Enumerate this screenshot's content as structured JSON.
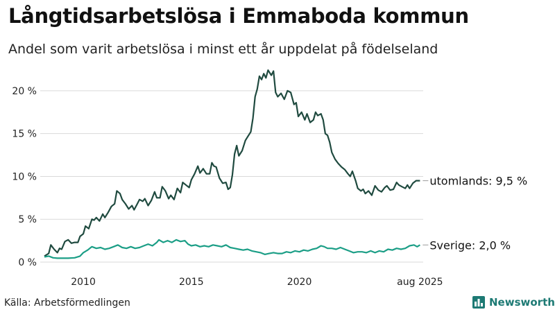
{
  "title": "Långtidsarbetslösa i Emmaboda kommun",
  "subtitle": "Andel som varit arbetslösa i minst ett år uppdelat på födelseland",
  "source": "Källa: Arbetsförmedlingen",
  "brand": {
    "name": "Newsworthy",
    "icon": "bar-chart-logo-icon",
    "color": "#1d7a74"
  },
  "chart_data": {
    "type": "line",
    "ylim": [
      0,
      22.5
    ],
    "yticks": [
      0,
      5,
      10,
      15,
      20
    ],
    "ytick_labels": [
      "0 %",
      "5 %",
      "10 %",
      "15 %",
      "20 %"
    ],
    "xlim": [
      2008.2,
      2025.6
    ],
    "xticks": [
      2010,
      2015,
      2020,
      2025.58
    ],
    "xtick_labels": [
      "2010",
      "2015",
      "2020",
      "aug 2025"
    ],
    "grid": true,
    "series": [
      {
        "name": "utomlands",
        "color": "#1f4a3f",
        "end_label": "utomlands: 9,5 %",
        "points": [
          [
            2008.2,
            0.7
          ],
          [
            2008.4,
            1.0
          ],
          [
            2008.5,
            2.0
          ],
          [
            2008.65,
            1.5
          ],
          [
            2008.8,
            1.1
          ],
          [
            2008.9,
            1.6
          ],
          [
            2009.0,
            1.5
          ],
          [
            2009.15,
            2.4
          ],
          [
            2009.3,
            2.6
          ],
          [
            2009.45,
            2.2
          ],
          [
            2009.6,
            2.3
          ],
          [
            2009.75,
            2.3
          ],
          [
            2009.85,
            3.0
          ],
          [
            2010.0,
            3.3
          ],
          [
            2010.1,
            4.2
          ],
          [
            2010.25,
            3.9
          ],
          [
            2010.4,
            5.0
          ],
          [
            2010.5,
            4.9
          ],
          [
            2010.6,
            5.2
          ],
          [
            2010.75,
            4.8
          ],
          [
            2010.9,
            5.6
          ],
          [
            2011.0,
            5.2
          ],
          [
            2011.15,
            5.8
          ],
          [
            2011.3,
            6.5
          ],
          [
            2011.45,
            6.8
          ],
          [
            2011.55,
            8.3
          ],
          [
            2011.7,
            8.0
          ],
          [
            2011.8,
            7.3
          ],
          [
            2011.95,
            6.8
          ],
          [
            2012.1,
            6.2
          ],
          [
            2012.25,
            6.6
          ],
          [
            2012.35,
            6.1
          ],
          [
            2012.5,
            6.8
          ],
          [
            2012.6,
            7.3
          ],
          [
            2012.75,
            7.1
          ],
          [
            2012.85,
            7.4
          ],
          [
            2013.0,
            6.6
          ],
          [
            2013.15,
            7.2
          ],
          [
            2013.3,
            8.2
          ],
          [
            2013.4,
            7.5
          ],
          [
            2013.55,
            7.5
          ],
          [
            2013.65,
            8.8
          ],
          [
            2013.8,
            8.3
          ],
          [
            2013.95,
            7.4
          ],
          [
            2014.05,
            7.8
          ],
          [
            2014.2,
            7.3
          ],
          [
            2014.35,
            8.6
          ],
          [
            2014.5,
            8.1
          ],
          [
            2014.6,
            9.3
          ],
          [
            2014.75,
            9.0
          ],
          [
            2014.9,
            8.7
          ],
          [
            2015.0,
            9.6
          ],
          [
            2015.15,
            10.3
          ],
          [
            2015.3,
            11.2
          ],
          [
            2015.4,
            10.4
          ],
          [
            2015.55,
            10.9
          ],
          [
            2015.7,
            10.3
          ],
          [
            2015.85,
            10.3
          ],
          [
            2015.95,
            11.6
          ],
          [
            2016.05,
            11.2
          ],
          [
            2016.15,
            11.1
          ],
          [
            2016.3,
            9.8
          ],
          [
            2016.45,
            9.2
          ],
          [
            2016.6,
            9.3
          ],
          [
            2016.7,
            8.5
          ],
          [
            2016.8,
            8.7
          ],
          [
            2016.9,
            10.2
          ],
          [
            2017.0,
            12.6
          ],
          [
            2017.1,
            13.6
          ],
          [
            2017.2,
            12.4
          ],
          [
            2017.35,
            13.0
          ],
          [
            2017.5,
            14.2
          ],
          [
            2017.6,
            14.6
          ],
          [
            2017.75,
            15.2
          ],
          [
            2017.85,
            16.8
          ],
          [
            2017.95,
            19.3
          ],
          [
            2018.05,
            20.2
          ],
          [
            2018.15,
            21.7
          ],
          [
            2018.25,
            21.3
          ],
          [
            2018.35,
            22.0
          ],
          [
            2018.45,
            21.5
          ],
          [
            2018.55,
            22.4
          ],
          [
            2018.7,
            21.8
          ],
          [
            2018.8,
            22.3
          ],
          [
            2018.9,
            19.8
          ],
          [
            2019.0,
            19.3
          ],
          [
            2019.15,
            19.7
          ],
          [
            2019.3,
            19.0
          ],
          [
            2019.45,
            20.0
          ],
          [
            2019.6,
            19.8
          ],
          [
            2019.75,
            18.4
          ],
          [
            2019.85,
            18.6
          ],
          [
            2019.95,
            17.0
          ],
          [
            2020.1,
            17.5
          ],
          [
            2020.25,
            16.6
          ],
          [
            2020.35,
            17.3
          ],
          [
            2020.5,
            16.3
          ],
          [
            2020.65,
            16.6
          ],
          [
            2020.75,
            17.5
          ],
          [
            2020.85,
            17.1
          ],
          [
            2021.0,
            17.3
          ],
          [
            2021.1,
            16.6
          ],
          [
            2021.2,
            15.0
          ],
          [
            2021.3,
            14.8
          ],
          [
            2021.4,
            14.0
          ],
          [
            2021.5,
            12.8
          ],
          [
            2021.65,
            12.0
          ],
          [
            2021.8,
            11.5
          ],
          [
            2021.95,
            11.1
          ],
          [
            2022.1,
            10.8
          ],
          [
            2022.25,
            10.3
          ],
          [
            2022.35,
            10.0
          ],
          [
            2022.45,
            10.6
          ],
          [
            2022.6,
            9.5
          ],
          [
            2022.7,
            8.6
          ],
          [
            2022.85,
            8.3
          ],
          [
            2022.95,
            8.5
          ],
          [
            2023.05,
            8.0
          ],
          [
            2023.2,
            8.3
          ],
          [
            2023.35,
            7.8
          ],
          [
            2023.5,
            8.9
          ],
          [
            2023.65,
            8.4
          ],
          [
            2023.8,
            8.2
          ],
          [
            2023.95,
            8.7
          ],
          [
            2024.05,
            8.9
          ],
          [
            2024.2,
            8.4
          ],
          [
            2024.35,
            8.5
          ],
          [
            2024.5,
            9.3
          ],
          [
            2024.6,
            9.0
          ],
          [
            2024.75,
            8.8
          ],
          [
            2024.9,
            8.6
          ],
          [
            2025.0,
            9.0
          ],
          [
            2025.1,
            8.6
          ],
          [
            2025.25,
            9.2
          ],
          [
            2025.4,
            9.5
          ],
          [
            2025.58,
            9.5
          ]
        ]
      },
      {
        "name": "Sverige",
        "color": "#1b9e86",
        "end_label": "Sverige: 2,0 %",
        "points": [
          [
            2008.2,
            0.6
          ],
          [
            2008.4,
            0.7
          ],
          [
            2008.6,
            0.5
          ],
          [
            2008.8,
            0.45
          ],
          [
            2009.0,
            0.45
          ],
          [
            2009.3,
            0.45
          ],
          [
            2009.6,
            0.5
          ],
          [
            2009.85,
            0.7
          ],
          [
            2010.0,
            1.1
          ],
          [
            2010.2,
            1.4
          ],
          [
            2010.4,
            1.8
          ],
          [
            2010.6,
            1.6
          ],
          [
            2010.8,
            1.7
          ],
          [
            2011.0,
            1.5
          ],
          [
            2011.2,
            1.6
          ],
          [
            2011.4,
            1.8
          ],
          [
            2011.6,
            2.0
          ],
          [
            2011.8,
            1.7
          ],
          [
            2012.0,
            1.6
          ],
          [
            2012.2,
            1.8
          ],
          [
            2012.4,
            1.6
          ],
          [
            2012.6,
            1.7
          ],
          [
            2012.8,
            1.9
          ],
          [
            2013.0,
            2.1
          ],
          [
            2013.2,
            1.9
          ],
          [
            2013.4,
            2.3
          ],
          [
            2013.5,
            2.6
          ],
          [
            2013.7,
            2.3
          ],
          [
            2013.9,
            2.5
          ],
          [
            2014.1,
            2.3
          ],
          [
            2014.3,
            2.6
          ],
          [
            2014.5,
            2.4
          ],
          [
            2014.7,
            2.5
          ],
          [
            2014.85,
            2.1
          ],
          [
            2015.0,
            1.9
          ],
          [
            2015.2,
            2.0
          ],
          [
            2015.4,
            1.8
          ],
          [
            2015.6,
            1.9
          ],
          [
            2015.8,
            1.8
          ],
          [
            2016.0,
            2.0
          ],
          [
            2016.2,
            1.9
          ],
          [
            2016.4,
            1.8
          ],
          [
            2016.6,
            2.0
          ],
          [
            2016.8,
            1.7
          ],
          [
            2017.0,
            1.6
          ],
          [
            2017.2,
            1.5
          ],
          [
            2017.4,
            1.4
          ],
          [
            2017.6,
            1.5
          ],
          [
            2017.8,
            1.3
          ],
          [
            2018.0,
            1.2
          ],
          [
            2018.2,
            1.1
          ],
          [
            2018.4,
            0.9
          ],
          [
            2018.6,
            1.0
          ],
          [
            2018.8,
            1.1
          ],
          [
            2019.0,
            1.0
          ],
          [
            2019.2,
            1.0
          ],
          [
            2019.4,
            1.2
          ],
          [
            2019.6,
            1.1
          ],
          [
            2019.8,
            1.3
          ],
          [
            2020.0,
            1.2
          ],
          [
            2020.2,
            1.4
          ],
          [
            2020.4,
            1.3
          ],
          [
            2020.6,
            1.5
          ],
          [
            2020.8,
            1.6
          ],
          [
            2021.0,
            1.9
          ],
          [
            2021.15,
            1.8
          ],
          [
            2021.3,
            1.6
          ],
          [
            2021.5,
            1.6
          ],
          [
            2021.7,
            1.5
          ],
          [
            2021.9,
            1.7
          ],
          [
            2022.1,
            1.5
          ],
          [
            2022.3,
            1.3
          ],
          [
            2022.5,
            1.1
          ],
          [
            2022.7,
            1.2
          ],
          [
            2022.9,
            1.2
          ],
          [
            2023.1,
            1.1
          ],
          [
            2023.3,
            1.3
          ],
          [
            2023.5,
            1.1
          ],
          [
            2023.7,
            1.3
          ],
          [
            2023.9,
            1.2
          ],
          [
            2024.1,
            1.5
          ],
          [
            2024.3,
            1.4
          ],
          [
            2024.5,
            1.6
          ],
          [
            2024.7,
            1.5
          ],
          [
            2024.9,
            1.6
          ],
          [
            2025.1,
            1.9
          ],
          [
            2025.3,
            2.0
          ],
          [
            2025.45,
            1.8
          ],
          [
            2025.58,
            2.0
          ]
        ]
      }
    ]
  }
}
